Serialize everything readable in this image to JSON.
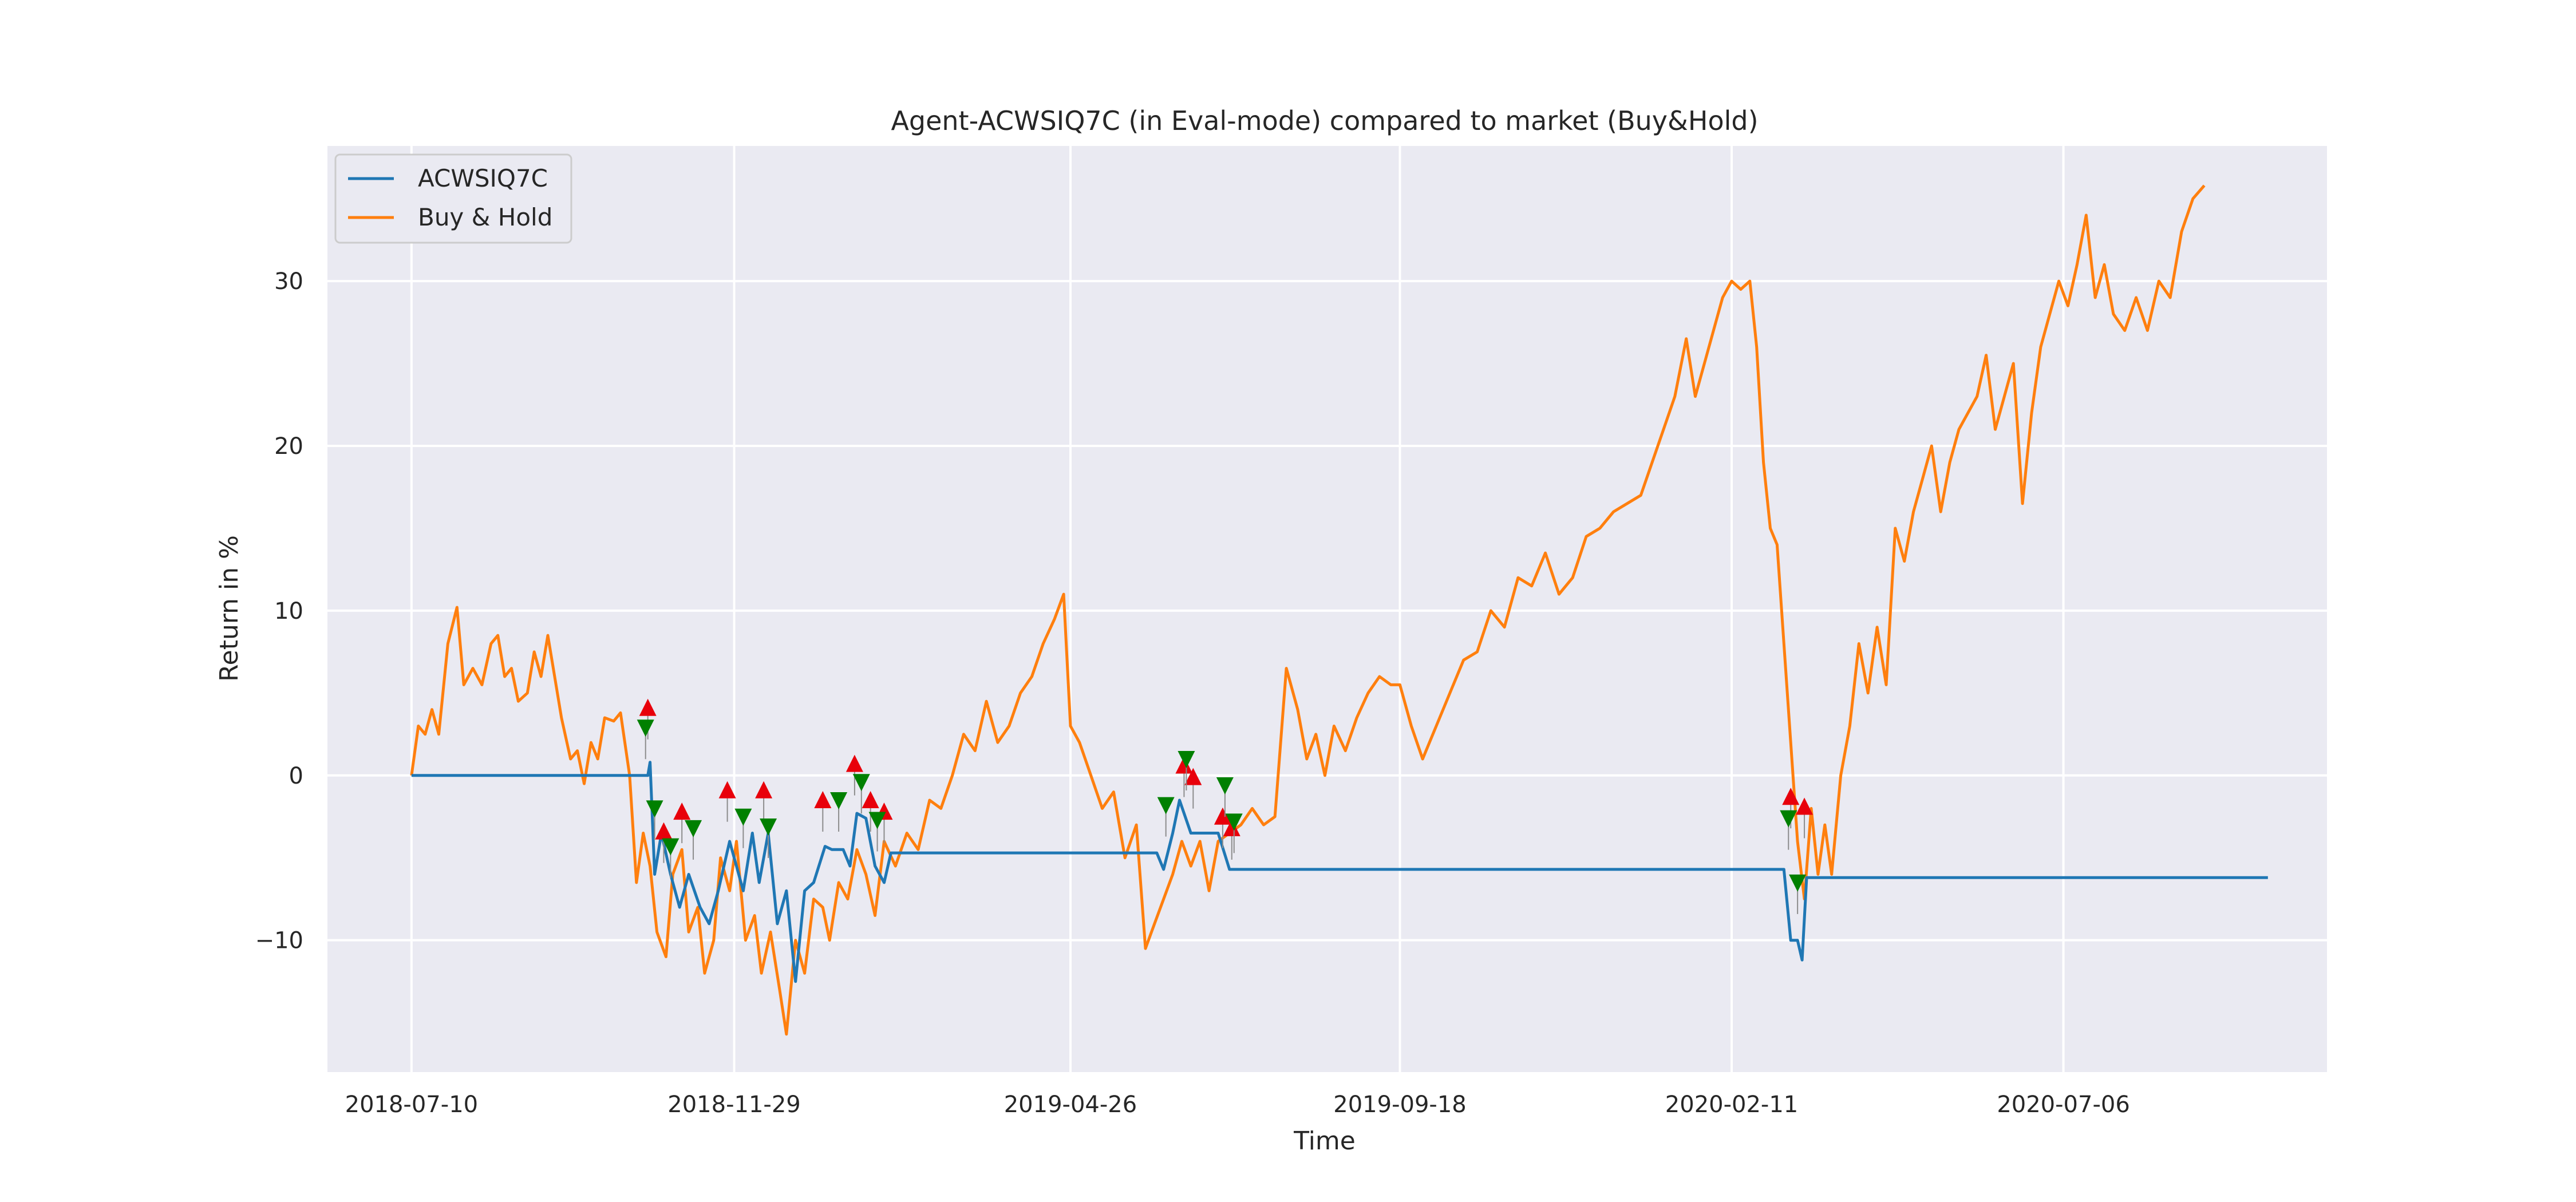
{
  "chart_data": {
    "type": "line",
    "title": "Agent-ACWSIQ7C (in Eval-mode) compared to market (Buy&Hold)",
    "xlabel": "Time",
    "ylabel": "Return in %",
    "x_ticks": [
      "2018-07-10",
      "2018-11-29",
      "2019-04-26",
      "2019-09-18",
      "2020-02-11",
      "2020-07-06"
    ],
    "y_ticks": [
      -10,
      0,
      10,
      20,
      30
    ],
    "y_tick_labels": [
      "−10",
      "0",
      "10",
      "20",
      "30"
    ],
    "xlim": [
      "2018-06-03",
      "2020-10-30"
    ],
    "ylim": [
      -18,
      38.2
    ],
    "grid": true,
    "legend_position": "top-left",
    "background": "#eaeaf2",
    "series": [
      {
        "name": "ACWSIQ7C",
        "color": "#1f77b4",
        "points": [
          [
            "2018-07-10",
            0
          ],
          [
            "2018-09-01",
            0
          ],
          [
            "2018-10-22",
            0
          ],
          [
            "2018-10-23",
            0.8
          ],
          [
            "2018-10-25",
            -6
          ],
          [
            "2018-10-28",
            -3.5
          ],
          [
            "2018-11-01",
            -6
          ],
          [
            "2018-11-05",
            -8
          ],
          [
            "2018-11-09",
            -6
          ],
          [
            "2018-11-14",
            -8
          ],
          [
            "2018-11-18",
            -9
          ],
          [
            "2018-11-22",
            -7
          ],
          [
            "2018-11-27",
            -4
          ],
          [
            "2018-11-30",
            -5.5
          ],
          [
            "2018-12-03",
            -7
          ],
          [
            "2018-12-07",
            -3.5
          ],
          [
            "2018-12-10",
            -6.5
          ],
          [
            "2018-12-14",
            -3.5
          ],
          [
            "2018-12-18",
            -9
          ],
          [
            "2018-12-22",
            -7
          ],
          [
            "2018-12-26",
            -12.5
          ],
          [
            "2018-12-30",
            -7
          ],
          [
            "2019-01-03",
            -6.5
          ],
          [
            "2019-01-08",
            -4.3
          ],
          [
            "2019-01-11",
            -4.5
          ],
          [
            "2019-01-16",
            -4.5
          ],
          [
            "2019-01-19",
            -5.5
          ],
          [
            "2019-01-22",
            -2.3
          ],
          [
            "2019-01-26",
            -2.6
          ],
          [
            "2019-01-30",
            -5.5
          ],
          [
            "2019-02-03",
            -6.5
          ],
          [
            "2019-02-06",
            -4.7
          ],
          [
            "2019-03-15",
            -4.7
          ],
          [
            "2019-04-15",
            -4.7
          ],
          [
            "2019-05-10",
            -4.7
          ],
          [
            "2019-05-30",
            -4.7
          ],
          [
            "2019-06-03",
            -4.7
          ],
          [
            "2019-06-06",
            -5.7
          ],
          [
            "2019-06-10",
            -3.5
          ],
          [
            "2019-06-13",
            -1.5
          ],
          [
            "2019-06-18",
            -3.5
          ],
          [
            "2019-06-25",
            -3.5
          ],
          [
            "2019-06-30",
            -3.5
          ],
          [
            "2019-07-05",
            -5.7
          ],
          [
            "2019-08-15",
            -5.7
          ],
          [
            "2019-10-15",
            -5.7
          ],
          [
            "2019-12-15",
            -5.7
          ],
          [
            "2020-02-10",
            -5.7
          ],
          [
            "2020-03-01",
            -5.7
          ],
          [
            "2020-03-05",
            -5.7
          ],
          [
            "2020-03-08",
            -10
          ],
          [
            "2020-03-11",
            -10
          ],
          [
            "2020-03-13",
            -11.2
          ],
          [
            "2020-03-15",
            -6.2
          ],
          [
            "2020-04-10",
            -6.2
          ],
          [
            "2020-06-10",
            -6.2
          ],
          [
            "2020-08-10",
            -6.2
          ],
          [
            "2020-10-04",
            -6.2
          ]
        ]
      },
      {
        "name": "Buy & Hold",
        "color": "#ff7f0e",
        "points": [
          [
            "2018-07-10",
            0
          ],
          [
            "2018-07-13",
            3
          ],
          [
            "2018-07-16",
            2.5
          ],
          [
            "2018-07-19",
            4
          ],
          [
            "2018-07-22",
            2.5
          ],
          [
            "2018-07-26",
            8
          ],
          [
            "2018-07-30",
            10.2
          ],
          [
            "2018-08-02",
            5.5
          ],
          [
            "2018-08-06",
            6.5
          ],
          [
            "2018-08-10",
            5.5
          ],
          [
            "2018-08-14",
            8
          ],
          [
            "2018-08-17",
            8.5
          ],
          [
            "2018-08-20",
            6
          ],
          [
            "2018-08-23",
            6.5
          ],
          [
            "2018-08-26",
            4.5
          ],
          [
            "2018-08-30",
            5
          ],
          [
            "2018-09-02",
            7.5
          ],
          [
            "2018-09-05",
            6
          ],
          [
            "2018-09-08",
            8.5
          ],
          [
            "2018-09-11",
            6
          ],
          [
            "2018-09-14",
            3.5
          ],
          [
            "2018-09-18",
            1
          ],
          [
            "2018-09-21",
            1.5
          ],
          [
            "2018-09-24",
            -0.5
          ],
          [
            "2018-09-27",
            2
          ],
          [
            "2018-09-30",
            1
          ],
          [
            "2018-10-03",
            3.5
          ],
          [
            "2018-10-07",
            3.3
          ],
          [
            "2018-10-10",
            3.8
          ],
          [
            "2018-10-14",
            0
          ],
          [
            "2018-10-17",
            -6.5
          ],
          [
            "2018-10-20",
            -3.5
          ],
          [
            "2018-10-23",
            -5.5
          ],
          [
            "2018-10-26",
            -9.5
          ],
          [
            "2018-10-30",
            -11
          ],
          [
            "2018-11-02",
            -6
          ],
          [
            "2018-11-06",
            -4.5
          ],
          [
            "2018-11-09",
            -9.5
          ],
          [
            "2018-11-13",
            -8
          ],
          [
            "2018-11-16",
            -12
          ],
          [
            "2018-11-20",
            -10
          ],
          [
            "2018-11-23",
            -5
          ],
          [
            "2018-11-27",
            -7
          ],
          [
            "2018-11-30",
            -4
          ],
          [
            "2018-12-04",
            -10
          ],
          [
            "2018-12-08",
            -8.5
          ],
          [
            "2018-12-11",
            -12
          ],
          [
            "2018-12-15",
            -9.5
          ],
          [
            "2018-12-19",
            -13
          ],
          [
            "2018-12-22",
            -15.7
          ],
          [
            "2018-12-26",
            -10
          ],
          [
            "2018-12-30",
            -12
          ],
          [
            "2019-01-03",
            -7.5
          ],
          [
            "2019-01-07",
            -8
          ],
          [
            "2019-01-10",
            -10
          ],
          [
            "2019-01-14",
            -6.5
          ],
          [
            "2019-01-18",
            -7.5
          ],
          [
            "2019-01-22",
            -4.5
          ],
          [
            "2019-01-26",
            -6
          ],
          [
            "2019-01-30",
            -8.5
          ],
          [
            "2019-02-03",
            -4
          ],
          [
            "2019-02-08",
            -5.5
          ],
          [
            "2019-02-13",
            -3.5
          ],
          [
            "2019-02-18",
            -4.5
          ],
          [
            "2019-02-23",
            -1.5
          ],
          [
            "2019-02-28",
            -2
          ],
          [
            "2019-03-05",
            0
          ],
          [
            "2019-03-10",
            2.5
          ],
          [
            "2019-03-15",
            1.5
          ],
          [
            "2019-03-20",
            4.5
          ],
          [
            "2019-03-25",
            2
          ],
          [
            "2019-03-30",
            3
          ],
          [
            "2019-04-04",
            5
          ],
          [
            "2019-04-09",
            6
          ],
          [
            "2019-04-14",
            8
          ],
          [
            "2019-04-19",
            9.5
          ],
          [
            "2019-04-23",
            11
          ],
          [
            "2019-04-26",
            3
          ],
          [
            "2019-04-30",
            2
          ],
          [
            "2019-05-05",
            0
          ],
          [
            "2019-05-10",
            -2
          ],
          [
            "2019-05-15",
            -1
          ],
          [
            "2019-05-20",
            -5
          ],
          [
            "2019-05-25",
            -3
          ],
          [
            "2019-05-29",
            -10.5
          ],
          [
            "2019-06-02",
            -9
          ],
          [
            "2019-06-06",
            -7.5
          ],
          [
            "2019-06-10",
            -6
          ],
          [
            "2019-06-14",
            -4
          ],
          [
            "2019-06-18",
            -5.5
          ],
          [
            "2019-06-22",
            -4
          ],
          [
            "2019-06-26",
            -7
          ],
          [
            "2019-06-30",
            -4
          ],
          [
            "2019-07-05",
            -3.5
          ],
          [
            "2019-07-10",
            -3
          ],
          [
            "2019-07-15",
            -2
          ],
          [
            "2019-07-20",
            -3
          ],
          [
            "2019-07-25",
            -2.5
          ],
          [
            "2019-07-30",
            6.5
          ],
          [
            "2019-08-04",
            4
          ],
          [
            "2019-08-08",
            1
          ],
          [
            "2019-08-12",
            2.5
          ],
          [
            "2019-08-16",
            0
          ],
          [
            "2019-08-20",
            3
          ],
          [
            "2019-08-25",
            1.5
          ],
          [
            "2019-08-30",
            3.5
          ],
          [
            "2019-09-04",
            5
          ],
          [
            "2019-09-09",
            6
          ],
          [
            "2019-09-14",
            5.5
          ],
          [
            "2019-09-18",
            5.5
          ],
          [
            "2019-09-23",
            3
          ],
          [
            "2019-09-28",
            1
          ],
          [
            "2019-10-04",
            3
          ],
          [
            "2019-10-10",
            5
          ],
          [
            "2019-10-16",
            7
          ],
          [
            "2019-10-22",
            7.5
          ],
          [
            "2019-10-28",
            10
          ],
          [
            "2019-11-03",
            9
          ],
          [
            "2019-11-09",
            12
          ],
          [
            "2019-11-15",
            11.5
          ],
          [
            "2019-11-21",
            13.5
          ],
          [
            "2019-11-27",
            11
          ],
          [
            "2019-12-03",
            12
          ],
          [
            "2019-12-09",
            14.5
          ],
          [
            "2019-12-15",
            15
          ],
          [
            "2019-12-21",
            16
          ],
          [
            "2019-12-27",
            16.5
          ],
          [
            "2020-01-02",
            17
          ],
          [
            "2020-01-07",
            19
          ],
          [
            "2020-01-12",
            21
          ],
          [
            "2020-01-17",
            23
          ],
          [
            "2020-01-22",
            26.5
          ],
          [
            "2020-01-26",
            23
          ],
          [
            "2020-01-30",
            25
          ],
          [
            "2020-02-03",
            27
          ],
          [
            "2020-02-07",
            29
          ],
          [
            "2020-02-11",
            30
          ],
          [
            "2020-02-15",
            29.5
          ],
          [
            "2020-02-19",
            30
          ],
          [
            "2020-02-22",
            26
          ],
          [
            "2020-02-25",
            19
          ],
          [
            "2020-02-28",
            15
          ],
          [
            "2020-03-02",
            14
          ],
          [
            "2020-03-05",
            8
          ],
          [
            "2020-03-08",
            2
          ],
          [
            "2020-03-11",
            -4
          ],
          [
            "2020-03-14",
            -7.5
          ],
          [
            "2020-03-17",
            -2
          ],
          [
            "2020-03-20",
            -6
          ],
          [
            "2020-03-23",
            -3
          ],
          [
            "2020-03-26",
            -6
          ],
          [
            "2020-03-30",
            0
          ],
          [
            "2020-04-03",
            3
          ],
          [
            "2020-04-07",
            8
          ],
          [
            "2020-04-11",
            5
          ],
          [
            "2020-04-15",
            9
          ],
          [
            "2020-04-19",
            5.5
          ],
          [
            "2020-04-23",
            15
          ],
          [
            "2020-04-27",
            13
          ],
          [
            "2020-05-01",
            16
          ],
          [
            "2020-05-05",
            18
          ],
          [
            "2020-05-09",
            20
          ],
          [
            "2020-05-13",
            16
          ],
          [
            "2020-05-17",
            19
          ],
          [
            "2020-05-21",
            21
          ],
          [
            "2020-05-25",
            22
          ],
          [
            "2020-05-29",
            23
          ],
          [
            "2020-06-02",
            25.5
          ],
          [
            "2020-06-06",
            21
          ],
          [
            "2020-06-10",
            23
          ],
          [
            "2020-06-14",
            25
          ],
          [
            "2020-06-18",
            16.5
          ],
          [
            "2020-06-22",
            22
          ],
          [
            "2020-06-26",
            26
          ],
          [
            "2020-06-30",
            28
          ],
          [
            "2020-07-04",
            30
          ],
          [
            "2020-07-08",
            28.5
          ],
          [
            "2020-07-12",
            31
          ],
          [
            "2020-07-16",
            34
          ],
          [
            "2020-07-20",
            29
          ],
          [
            "2020-07-24",
            31
          ],
          [
            "2020-07-28",
            28
          ],
          [
            "2020-08-02",
            27
          ],
          [
            "2020-08-07",
            29
          ],
          [
            "2020-08-12",
            27
          ],
          [
            "2020-08-17",
            30
          ],
          [
            "2020-08-22",
            29
          ],
          [
            "2020-08-27",
            33
          ],
          [
            "2020-09-01",
            35
          ],
          [
            "2020-09-06",
            35.8
          ]
        ]
      }
    ],
    "trade_markers": {
      "buy_color": "#e8000b",
      "sell_color": "#008000",
      "buy": [
        [
          "2018-10-22",
          4.1
        ],
        [
          "2018-10-29",
          -3.4
        ],
        [
          "2018-11-06",
          -2.2
        ],
        [
          "2018-11-26",
          -0.9
        ],
        [
          "2018-12-12",
          -0.9
        ],
        [
          "2019-01-07",
          -1.5
        ],
        [
          "2019-01-21",
          0.7
        ],
        [
          "2019-01-28",
          -1.5
        ],
        [
          "2019-02-03",
          -2.2
        ],
        [
          "2019-06-15",
          0.6
        ],
        [
          "2019-06-19",
          -0.1
        ],
        [
          "2019-07-02",
          -2.5
        ],
        [
          "2019-07-06",
          -3.2
        ],
        [
          "2020-03-08",
          -1.3
        ],
        [
          "2020-03-14",
          -1.9
        ]
      ],
      "sell": [
        [
          "2018-10-21",
          2.9
        ],
        [
          "2018-10-25",
          -2
        ],
        [
          "2018-11-01",
          -4.3
        ],
        [
          "2018-11-11",
          -3.2
        ],
        [
          "2018-12-03",
          -2.5
        ],
        [
          "2018-12-14",
          -3.1
        ],
        [
          "2019-01-14",
          -1.5
        ],
        [
          "2019-01-24",
          -0.4
        ],
        [
          "2019-01-31",
          -2.7
        ],
        [
          "2019-06-07",
          -1.8
        ],
        [
          "2019-06-16",
          1
        ],
        [
          "2019-07-03",
          -0.6
        ],
        [
          "2019-07-07",
          -2.8
        ],
        [
          "2020-03-07",
          -2.6
        ],
        [
          "2020-03-11",
          -6.5
        ]
      ]
    }
  }
}
